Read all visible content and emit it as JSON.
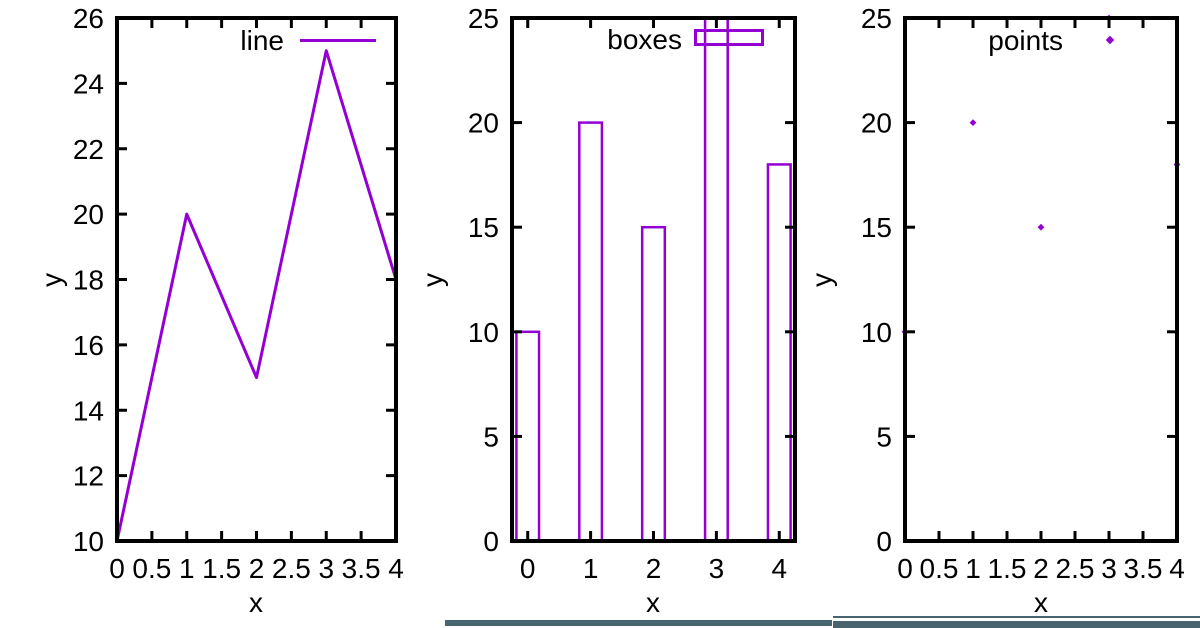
{
  "colors": {
    "accent": "#9400d3",
    "axis": "#000000",
    "background": "#ffffff",
    "underline": "#47646f"
  },
  "chart_data": [
    {
      "type": "line",
      "legend_label": "line",
      "xlabel": "x",
      "ylabel": "y",
      "x": [
        0,
        1,
        2,
        3,
        4
      ],
      "values": [
        10,
        20,
        15,
        25,
        18
      ],
      "xlim": [
        0,
        4
      ],
      "ylim": [
        10,
        26
      ],
      "xticks": [
        0,
        0.5,
        1,
        1.5,
        2,
        2.5,
        3,
        3.5,
        4
      ],
      "xtick_labels": [
        "0",
        "0.5",
        "1",
        "1.5",
        "2",
        "2.5",
        "3",
        "3.5",
        "4"
      ],
      "yticks": [
        10,
        12,
        14,
        16,
        18,
        20,
        22,
        24,
        26
      ],
      "ytick_labels": [
        "10",
        "12",
        "14",
        "16",
        "18",
        "20",
        "22",
        "24",
        "26"
      ],
      "grid": false,
      "legend_position": "top-right-inside"
    },
    {
      "type": "bar",
      "legend_label": "boxes",
      "xlabel": "x",
      "ylabel": "y",
      "x": [
        0,
        1,
        2,
        3,
        4
      ],
      "values": [
        10,
        20,
        15,
        25,
        18
      ],
      "xlim": [
        -0.25,
        4.25
      ],
      "ylim": [
        0,
        25
      ],
      "box_width": 0.36,
      "xticks": [
        0,
        1,
        2,
        3,
        4
      ],
      "xtick_labels": [
        "0",
        "1",
        "2",
        "3",
        "4"
      ],
      "yticks": [
        0,
        5,
        10,
        15,
        20,
        25
      ],
      "ytick_labels": [
        "0",
        "5",
        "10",
        "15",
        "20",
        "25"
      ],
      "grid": false,
      "legend_position": "top-right-inside"
    },
    {
      "type": "scatter",
      "legend_label": "points",
      "xlabel": "x",
      "ylabel": "y",
      "x": [
        0,
        1,
        2,
        3,
        4
      ],
      "values": [
        10,
        20,
        15,
        25,
        18
      ],
      "xlim": [
        0,
        4
      ],
      "ylim": [
        0,
        25
      ],
      "xticks": [
        0,
        0.5,
        1,
        1.5,
        2,
        2.5,
        3,
        3.5,
        4
      ],
      "xtick_labels": [
        "0",
        "0.5",
        "1",
        "1.5",
        "2",
        "2.5",
        "3",
        "3.5",
        "4"
      ],
      "yticks": [
        0,
        5,
        10,
        15,
        20,
        25
      ],
      "ytick_labels": [
        "0",
        "5",
        "10",
        "15",
        "20",
        "25"
      ],
      "grid": false,
      "legend_position": "top-right-inside"
    }
  ]
}
